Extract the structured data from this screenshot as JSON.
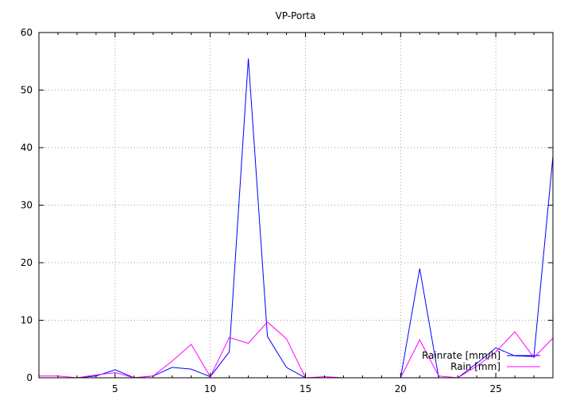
{
  "chart_data": {
    "type": "line",
    "title": "VP-Porta",
    "xlabel": "",
    "ylabel": "",
    "xlim": [
      1,
      28
    ],
    "ylim": [
      0,
      60
    ],
    "x_ticks": [
      5,
      10,
      15,
      20,
      25
    ],
    "y_ticks": [
      0,
      10,
      20,
      30,
      40,
      50,
      60
    ],
    "grid": true,
    "legend_position": "bottom-right",
    "series": [
      {
        "name": "Rainrate [mm/h]",
        "color": "#0000ff",
        "points": [
          [
            1,
            0
          ],
          [
            2,
            0
          ],
          [
            3,
            0
          ],
          [
            4,
            0.3
          ],
          [
            5,
            1.4
          ],
          [
            6,
            0
          ],
          [
            7,
            0.3
          ],
          [
            8,
            1.8
          ],
          [
            9,
            1.5
          ],
          [
            10,
            0.2
          ],
          [
            11,
            4.5
          ],
          [
            12,
            55.5
          ],
          [
            13,
            7.2
          ],
          [
            14,
            1.8
          ],
          [
            15,
            0
          ],
          [
            16,
            0
          ],
          [
            17,
            0
          ],
          [
            20,
            0
          ],
          [
            21,
            19
          ],
          [
            22,
            0
          ],
          [
            23,
            0
          ],
          [
            24,
            2.5
          ],
          [
            25,
            5.2
          ],
          [
            26,
            3.8
          ],
          [
            27,
            3.7
          ],
          [
            28,
            38.5
          ]
        ]
      },
      {
        "name": "Rain [mm]",
        "color": "#ff00ff",
        "points": [
          [
            1,
            0.3
          ],
          [
            2,
            0.3
          ],
          [
            3,
            0
          ],
          [
            4,
            0.5
          ],
          [
            5,
            0.9
          ],
          [
            6,
            0
          ],
          [
            7,
            0.3
          ],
          [
            8,
            2.9
          ],
          [
            9,
            5.8
          ],
          [
            10,
            0.2
          ],
          [
            11,
            7
          ],
          [
            12,
            6
          ],
          [
            13,
            9.7
          ],
          [
            14,
            6.8
          ],
          [
            15,
            0
          ],
          [
            16,
            0.2
          ],
          [
            17,
            0
          ],
          [
            20,
            0
          ],
          [
            21,
            6.6
          ],
          [
            22,
            0.3
          ],
          [
            23,
            0
          ],
          [
            24,
            2
          ],
          [
            25,
            4.5
          ],
          [
            26,
            8
          ],
          [
            27,
            3.5
          ],
          [
            28,
            6.9
          ]
        ]
      }
    ]
  }
}
